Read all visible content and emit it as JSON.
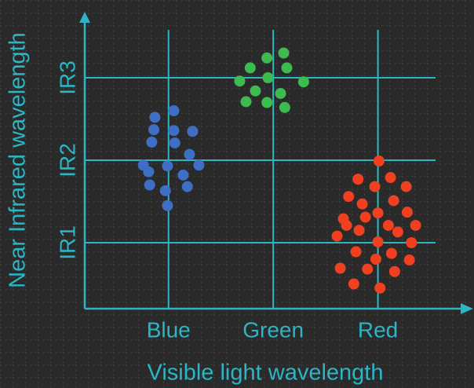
{
  "chart_data": {
    "type": "scatter",
    "x_label": "Visible light wavelength",
    "y_label": "Near Infrared wavelength",
    "xlim": [
      0.2,
      3.85
    ],
    "ylim": [
      0.2,
      3.8
    ],
    "xticks": [
      {
        "value": 1,
        "label": "Blue"
      },
      {
        "value": 2,
        "label": "Green"
      },
      {
        "value": 3,
        "label": "Red"
      }
    ],
    "yticks": [
      {
        "value": 1,
        "label": "IR1"
      },
      {
        "value": 2,
        "label": "IR2"
      },
      {
        "value": 3,
        "label": "IR3"
      }
    ],
    "grid": true,
    "axis_color": "#2bb5c5",
    "series": [
      {
        "color": "#3f6fc4",
        "x": [
          1.05,
          0.87,
          0.86,
          1.05,
          1.23,
          0.84,
          1.06,
          0.76,
          1.2,
          0.99,
          1.29,
          0.81,
          1.14,
          0.82,
          0.97,
          1.18,
          0.99
        ],
        "y": [
          2.6,
          2.52,
          2.37,
          2.36,
          2.35,
          2.22,
          2.21,
          1.94,
          2.07,
          1.93,
          1.94,
          1.86,
          1.82,
          1.7,
          1.63,
          1.68,
          1.45
        ]
      },
      {
        "color": "#3dbb4f",
        "x": [
          1.94,
          2.1,
          1.78,
          2.13,
          1.68,
          1.95,
          2.29,
          1.83,
          2.07,
          1.74,
          1.94,
          2.11
        ],
        "y": [
          3.24,
          3.3,
          3.12,
          3.12,
          2.96,
          3.0,
          2.95,
          2.84,
          2.81,
          2.71,
          2.7,
          2.64
        ]
      },
      {
        "color": "#f0401f",
        "x": [
          3.01,
          2.81,
          3.12,
          2.97,
          3.27,
          2.72,
          3.15,
          2.85,
          2.67,
          3.0,
          3.28,
          2.88,
          3.36,
          3.1,
          2.7,
          2.82,
          2.61,
          3.19,
          3.0,
          3.32,
          2.79,
          3.13,
          3.3,
          2.98,
          2.64,
          2.9,
          3.16,
          2.77,
          3.02
        ],
        "y": [
          1.99,
          1.77,
          1.79,
          1.68,
          1.68,
          1.56,
          1.51,
          1.47,
          1.29,
          1.36,
          1.37,
          1.31,
          1.21,
          1.21,
          1.21,
          1.15,
          1.08,
          1.13,
          1.01,
          1.0,
          0.89,
          0.87,
          0.79,
          0.8,
          0.69,
          0.68,
          0.65,
          0.5,
          0.45
        ]
      }
    ]
  }
}
